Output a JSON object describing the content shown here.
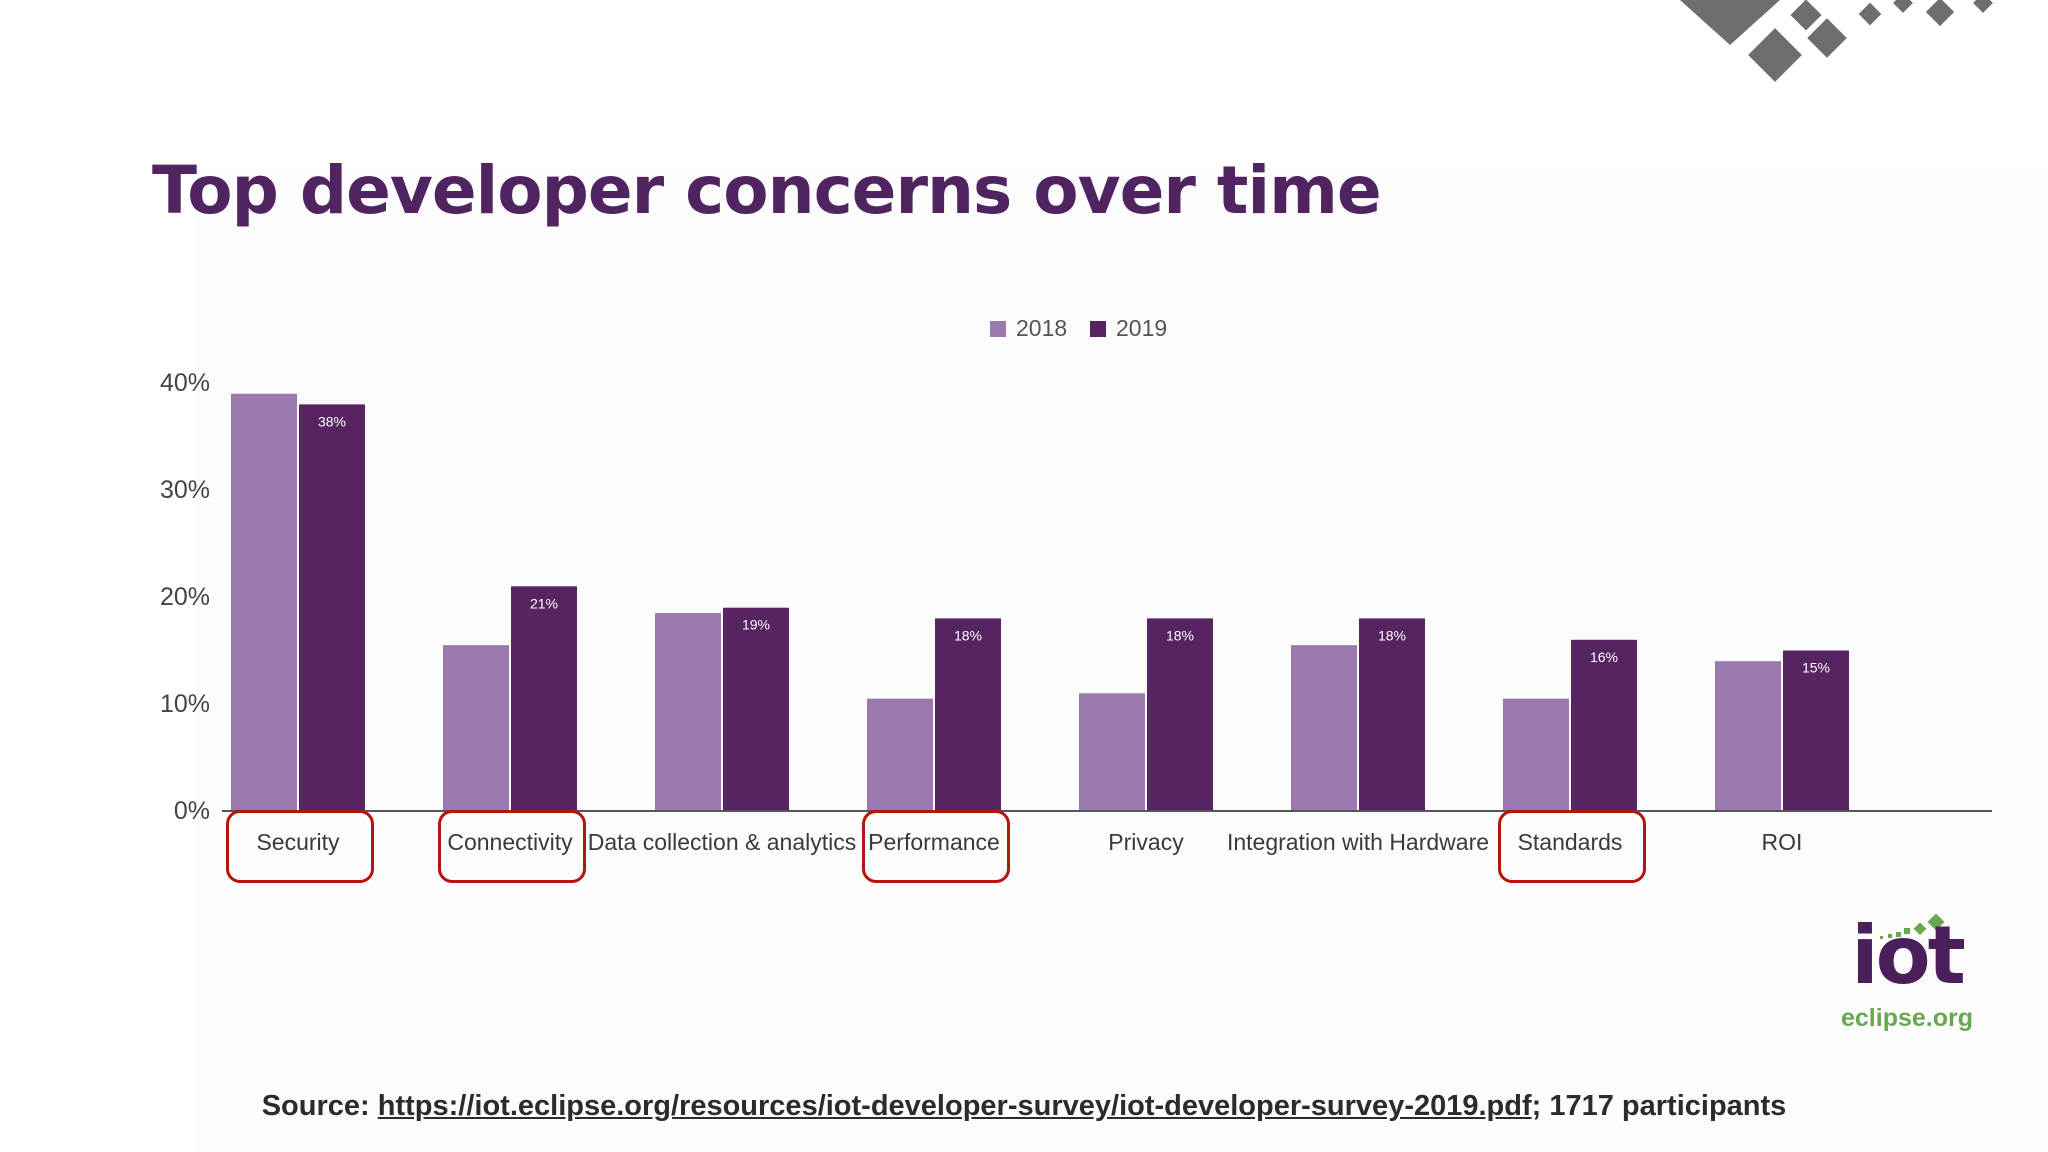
{
  "slide": {
    "title": "Top developer concerns over time",
    "source_label": "Source:",
    "source_url": "https://iot.eclipse.org/resources/iot-developer-survey/iot-developer-survey-2019.pdf",
    "source_suffix": "; 1717 participants"
  },
  "logo": {
    "word": "iot",
    "sub": "eclipse.org"
  },
  "colors": {
    "title": "#4f2460",
    "series_2018": "#9b78ae",
    "series_2019": "#552461",
    "highlight": "#b3150f",
    "logo_green": "#6aa84f"
  },
  "chart_data": {
    "type": "bar",
    "categories": [
      "Security",
      "Connectivity",
      "Data collection & analytics",
      "Performance",
      "Privacy",
      "Integration with Hardware",
      "Standards",
      "ROI"
    ],
    "series": [
      {
        "name": "2018",
        "values": [
          39,
          15.5,
          18.5,
          10.5,
          11,
          15.5,
          10.5,
          14
        ]
      },
      {
        "name": "2019",
        "values": [
          38,
          21,
          19,
          18,
          18,
          18,
          16,
          15
        ],
        "labels": [
          "38%",
          "21%",
          "19%",
          "18%",
          "18%",
          "18%",
          "16%",
          "15%"
        ]
      }
    ],
    "yticks": [
      "0%",
      "10%",
      "20%",
      "30%",
      "40%"
    ],
    "ylim": [
      0,
      40
    ],
    "grid": false,
    "legend_position": "top-center",
    "highlighted_categories": [
      "Security",
      "Connectivity",
      "Performance",
      "Standards"
    ]
  }
}
